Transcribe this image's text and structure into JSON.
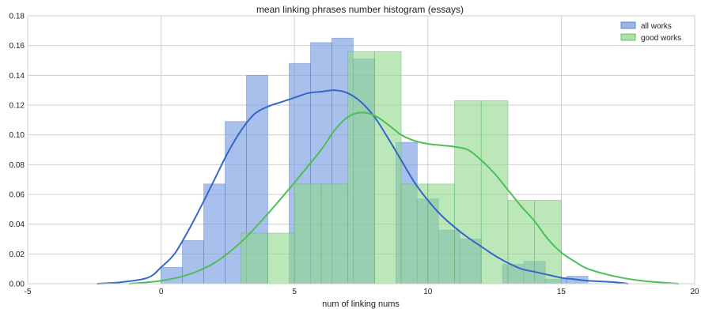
{
  "chart_data": {
    "type": "histogram",
    "title": "mean linking phrases number histogram (essays)",
    "xlabel": "num of linking nums",
    "ylabel": "",
    "xlim": [
      -5,
      20
    ],
    "ylim": [
      0,
      0.18
    ],
    "xticks": [
      -5,
      0,
      5,
      10,
      15,
      20
    ],
    "yticks": [
      0.0,
      0.02,
      0.04,
      0.06,
      0.08,
      0.1,
      0.12,
      0.14,
      0.16,
      0.18
    ],
    "grid": true,
    "legend_position": "top-right",
    "series": [
      {
        "name": "all works",
        "color": "#4c72b0",
        "fill": "#7a9ee0",
        "bins": [
          {
            "x0": 0.0,
            "x1": 0.8,
            "value": 0.011
          },
          {
            "x0": 0.8,
            "x1": 1.6,
            "value": 0.029
          },
          {
            "x0": 1.6,
            "x1": 2.4,
            "value": 0.067
          },
          {
            "x0": 2.4,
            "x1": 3.2,
            "value": 0.109
          },
          {
            "x0": 3.2,
            "x1": 4.0,
            "value": 0.14
          },
          {
            "x0": 4.0,
            "x1": 4.8,
            "value": 0.0
          },
          {
            "x0": 4.8,
            "x1": 5.6,
            "value": 0.148
          },
          {
            "x0": 5.6,
            "x1": 6.4,
            "value": 0.162
          },
          {
            "x0": 6.4,
            "x1": 7.2,
            "value": 0.165
          },
          {
            "x0": 7.2,
            "x1": 8.0,
            "value": 0.151
          },
          {
            "x0": 8.0,
            "x1": 8.8,
            "value": 0.0
          },
          {
            "x0": 8.8,
            "x1": 9.6,
            "value": 0.095
          },
          {
            "x0": 9.6,
            "x1": 10.4,
            "value": 0.057
          },
          {
            "x0": 10.4,
            "x1": 11.2,
            "value": 0.036
          },
          {
            "x0": 11.2,
            "x1": 12.0,
            "value": 0.03
          },
          {
            "x0": 12.0,
            "x1": 12.8,
            "value": 0.0
          },
          {
            "x0": 12.8,
            "x1": 13.6,
            "value": 0.013
          },
          {
            "x0": 13.6,
            "x1": 14.4,
            "value": 0.015
          },
          {
            "x0": 14.4,
            "x1": 15.2,
            "value": 0.003
          },
          {
            "x0": 15.2,
            "x1": 16.0,
            "value": 0.005
          }
        ],
        "kde": [
          [
            -2.4,
            0.0
          ],
          [
            -1.5,
            0.001
          ],
          [
            -0.5,
            0.004
          ],
          [
            0.0,
            0.011
          ],
          [
            0.5,
            0.02
          ],
          [
            1.0,
            0.035
          ],
          [
            1.5,
            0.052
          ],
          [
            2.0,
            0.07
          ],
          [
            2.5,
            0.088
          ],
          [
            3.0,
            0.103
          ],
          [
            3.5,
            0.114
          ],
          [
            4.0,
            0.119
          ],
          [
            4.5,
            0.122
          ],
          [
            5.0,
            0.125
          ],
          [
            5.5,
            0.128
          ],
          [
            6.0,
            0.129
          ],
          [
            6.5,
            0.13
          ],
          [
            7.0,
            0.128
          ],
          [
            7.5,
            0.122
          ],
          [
            8.0,
            0.112
          ],
          [
            8.5,
            0.098
          ],
          [
            9.0,
            0.083
          ],
          [
            9.5,
            0.068
          ],
          [
            10.0,
            0.056
          ],
          [
            10.5,
            0.046
          ],
          [
            11.0,
            0.038
          ],
          [
            11.5,
            0.031
          ],
          [
            12.0,
            0.025
          ],
          [
            12.5,
            0.019
          ],
          [
            13.0,
            0.014
          ],
          [
            13.5,
            0.01
          ],
          [
            14.0,
            0.008
          ],
          [
            14.5,
            0.006
          ],
          [
            15.0,
            0.004
          ],
          [
            15.5,
            0.003
          ],
          [
            16.0,
            0.002
          ],
          [
            17.0,
            0.001
          ],
          [
            17.5,
            0.0
          ]
        ]
      },
      {
        "name": "good works",
        "color": "#55a868",
        "fill": "#8fd98a",
        "bins": [
          {
            "x0": 3.0,
            "x1": 4.0,
            "value": 0.034
          },
          {
            "x0": 4.0,
            "x1": 5.0,
            "value": 0.034
          },
          {
            "x0": 5.0,
            "x1": 6.0,
            "value": 0.067
          },
          {
            "x0": 6.0,
            "x1": 7.0,
            "value": 0.067
          },
          {
            "x0": 7.0,
            "x1": 8.0,
            "value": 0.156
          },
          {
            "x0": 8.0,
            "x1": 9.0,
            "value": 0.156
          },
          {
            "x0": 9.0,
            "x1": 10.0,
            "value": 0.067
          },
          {
            "x0": 10.0,
            "x1": 11.0,
            "value": 0.067
          },
          {
            "x0": 11.0,
            "x1": 12.0,
            "value": 0.123
          },
          {
            "x0": 12.0,
            "x1": 13.0,
            "value": 0.123
          },
          {
            "x0": 13.0,
            "x1": 14.0,
            "value": 0.056
          },
          {
            "x0": 14.0,
            "x1": 15.0,
            "value": 0.056
          }
        ],
        "kde": [
          [
            -1.2,
            0.0
          ],
          [
            0.0,
            0.002
          ],
          [
            1.0,
            0.006
          ],
          [
            2.0,
            0.014
          ],
          [
            3.0,
            0.028
          ],
          [
            4.0,
            0.047
          ],
          [
            5.0,
            0.068
          ],
          [
            6.0,
            0.09
          ],
          [
            6.5,
            0.103
          ],
          [
            7.0,
            0.112
          ],
          [
            7.5,
            0.115
          ],
          [
            8.0,
            0.113
          ],
          [
            8.5,
            0.107
          ],
          [
            9.0,
            0.1
          ],
          [
            9.5,
            0.096
          ],
          [
            10.0,
            0.094
          ],
          [
            10.5,
            0.093
          ],
          [
            11.0,
            0.092
          ],
          [
            11.5,
            0.09
          ],
          [
            12.0,
            0.083
          ],
          [
            12.5,
            0.074
          ],
          [
            13.0,
            0.063
          ],
          [
            13.5,
            0.052
          ],
          [
            14.0,
            0.042
          ],
          [
            14.5,
            0.03
          ],
          [
            15.0,
            0.021
          ],
          [
            15.5,
            0.015
          ],
          [
            16.0,
            0.01
          ],
          [
            17.0,
            0.005
          ],
          [
            18.0,
            0.002
          ],
          [
            19.4,
            0.0
          ]
        ]
      }
    ]
  }
}
